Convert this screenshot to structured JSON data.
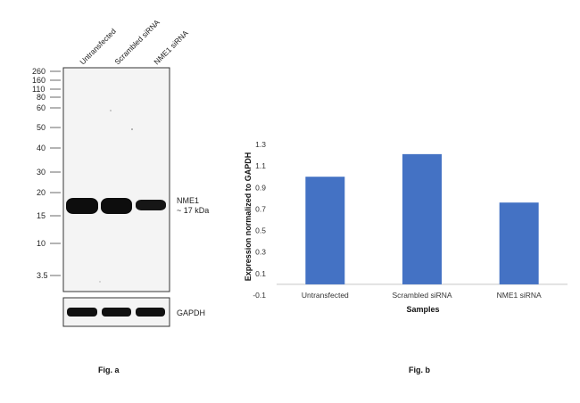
{
  "figure_a": {
    "lanes": [
      "Untransfected",
      "Scrambled siRNA",
      "NME1 siRNA"
    ],
    "markers": [
      "260",
      "160",
      "110",
      "80",
      "60",
      "50",
      "40",
      "30",
      "20",
      "15",
      "10",
      "3.5"
    ],
    "band_label": "NME1",
    "band_size": "~ 17 kDa",
    "loading_label": "GAPDH",
    "caption": "Fig. a"
  },
  "figure_b": {
    "caption": "Fig. b"
  },
  "chart_data": {
    "type": "bar",
    "categories": [
      "Untransfected",
      "Scrambled siRNA",
      "NME1 siRNA"
    ],
    "values": [
      1.0,
      1.21,
      0.76
    ],
    "xlabel": "Samples",
    "ylabel": "Expression  normalized to GAPDH",
    "ylim": [
      -0.1,
      1.3
    ],
    "yticks": [
      1.3,
      1.1,
      0.9,
      0.7,
      0.5,
      0.3,
      0.1,
      -0.1
    ],
    "grid": false,
    "bar_color": "#4472C4"
  }
}
